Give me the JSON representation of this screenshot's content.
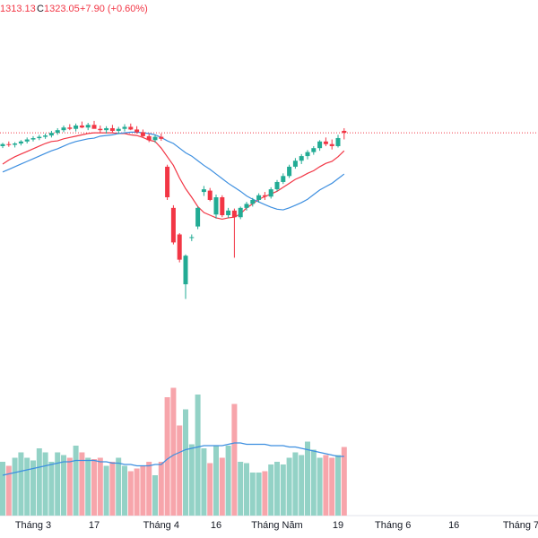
{
  "header": {
    "low": "1313.13",
    "close_prefix": "C",
    "close": "1323.05",
    "change": "+7.90 (+0.60%)"
  },
  "chart_data": {
    "type": "candlestick",
    "categories": [
      null,
      null,
      null,
      null,
      null,
      "Tháng 3",
      null,
      null,
      null,
      null,
      null,
      null,
      null,
      null,
      null,
      "17",
      null,
      null,
      null,
      null,
      null,
      null,
      null,
      null,
      null,
      null,
      "Tháng 4",
      null,
      null,
      null,
      null,
      null,
      null,
      null,
      null,
      "16",
      null,
      null,
      null,
      null,
      null,
      null,
      null,
      null,
      null,
      "Tháng Năm",
      null,
      null,
      null,
      null,
      null,
      null,
      null,
      null,
      null,
      "19",
      null,
      null,
      null,
      null,
      null,
      null,
      null,
      null,
      "Tháng 6",
      null,
      null,
      null,
      null,
      null,
      null,
      null,
      null,
      null,
      "16",
      null,
      null,
      null,
      null,
      null,
      null,
      null,
      null,
      null,
      null,
      "Tháng 7",
      null,
      null
    ],
    "open": [
      1303,
      1306,
      1305,
      1307,
      1310,
      1313,
      1315,
      1317,
      1319,
      1323,
      1327,
      1331,
      1329,
      1334,
      1331,
      1335,
      1329,
      1327,
      1330,
      1326,
      1329,
      1332,
      1328,
      1324,
      1318,
      1312,
      1317,
      1272,
      1210,
      1170,
      1095,
      1165,
      1182,
      1234,
      1236,
      1200,
      1226,
      1199,
      1206,
      1196,
      1210,
      1216,
      1222,
      1229,
      1227,
      1238,
      1249,
      1258,
      1272,
      1281,
      1288,
      1294,
      1300,
      1310,
      1306,
      1303,
      1326,
      null,
      null,
      null,
      null,
      null,
      null,
      null,
      null,
      null,
      null,
      null,
      null,
      null,
      null,
      null,
      null,
      null,
      null,
      null,
      null,
      null,
      null,
      null,
      null,
      null,
      null,
      null,
      null,
      null,
      null,
      null
    ],
    "high": [
      1308,
      1310,
      1309,
      1312,
      1316,
      1318,
      1320,
      1322,
      1326,
      1330,
      1334,
      1336,
      1337,
      1340,
      1338,
      1341,
      1334,
      1333,
      1335,
      1332,
      1336,
      1337,
      1333,
      1328,
      1322,
      1320,
      1322,
      1275,
      1214,
      1172,
      1140,
      1170,
      1212,
      1243,
      1240,
      1230,
      1229,
      1210,
      1209,
      1212,
      1219,
      1225,
      1232,
      1234,
      1241,
      1252,
      1262,
      1275,
      1285,
      1291,
      1297,
      1303,
      1312,
      1316,
      1313,
      1320,
      1330,
      null,
      null,
      null,
      null,
      null,
      null,
      null,
      null,
      null,
      null,
      null,
      null,
      null,
      null,
      null,
      null,
      null,
      null,
      null,
      null,
      null,
      null,
      null,
      null,
      null,
      null,
      null,
      null,
      null,
      null,
      null
    ],
    "low": [
      1300,
      1302,
      1301,
      1304,
      1307,
      1310,
      1312,
      1314,
      1316,
      1320,
      1324,
      1327,
      1325,
      1330,
      1327,
      1330,
      1323,
      1322,
      1324,
      1321,
      1325,
      1327,
      1322,
      1316,
      1309,
      1308,
      1311,
      1222,
      1155,
      1128,
      1073,
      1160,
      1178,
      1228,
      1220,
      1194,
      1196,
      1195,
      1135,
      1193,
      1206,
      1212,
      1218,
      1222,
      1224,
      1235,
      1246,
      1255,
      1269,
      1276,
      1283,
      1290,
      1296,
      1303,
      1298,
      1301,
      1313.13,
      null,
      null,
      null,
      null,
      null,
      null,
      null,
      null,
      null,
      null,
      null,
      null,
      null,
      null,
      null,
      null,
      null,
      null,
      null,
      null,
      null,
      null,
      null,
      null,
      null,
      null,
      null,
      null,
      null,
      null,
      null
    ],
    "close": [
      1306,
      1305,
      1307,
      1310,
      1313,
      1315,
      1317,
      1319,
      1323,
      1327,
      1331,
      1329,
      1334,
      1331,
      1335,
      1329,
      1327,
      1330,
      1326,
      1329,
      1332,
      1328,
      1324,
      1318,
      1312,
      1317,
      1314,
      1226,
      1158,
      1132,
      1138,
      1166,
      1210,
      1238,
      1222,
      1226,
      1199,
      1206,
      1196,
      1210,
      1216,
      1222,
      1229,
      1227,
      1238,
      1249,
      1258,
      1272,
      1281,
      1288,
      1294,
      1300,
      1310,
      1306,
      1303,
      1315.15,
      1323.05,
      null,
      null,
      null,
      null,
      null,
      null,
      null,
      null,
      null,
      null,
      null,
      null,
      null,
      null,
      null,
      null,
      null,
      null,
      null,
      null,
      null,
      null,
      null,
      null,
      null,
      null,
      null,
      null,
      null,
      null,
      null
    ],
    "up_color": "#22ab94",
    "down_color": "#f23645",
    "ylim": [
      983,
      1523
    ],
    "lines": [
      {
        "color": "#f23645",
        "values": [
          1276,
          1282,
          1287,
          1291,
          1295,
          1299,
          1303,
          1307,
          1310,
          1311,
          1314,
          1316,
          1318,
          1320,
          1322,
          1323,
          1323,
          1323,
          1323,
          1322,
          1322,
          1320,
          1319,
          1316,
          1312,
          1310,
          1300,
          1287,
          1274,
          1255,
          1239,
          1226,
          1212,
          1203,
          1199,
          1195,
          1193,
          1195,
          1196,
          1201,
          1210,
          1216,
          1223,
          1227,
          1231,
          1235,
          1241,
          1247,
          1253,
          1257,
          1262,
          1266,
          1272,
          1277,
          1280,
          1287,
          1296,
          null,
          null,
          null,
          null,
          null,
          null,
          null,
          null,
          null,
          null,
          null,
          null,
          null,
          null,
          null,
          null,
          null,
          null,
          null,
          null,
          null,
          null,
          null,
          null,
          null,
          null,
          null,
          null,
          null,
          null,
          null
        ]
      },
      {
        "color": "#3d8fe0",
        "values": [
          1264,
          1268,
          1272,
          1276,
          1280,
          1284,
          1288,
          1292,
          1296,
          1299,
          1303,
          1307,
          1310,
          1312,
          1314,
          1315,
          1318,
          1319,
          1320,
          1322,
          1323,
          1324,
          1324,
          1323,
          1322,
          1320,
          1316,
          1311,
          1307,
          1300,
          1293,
          1288,
          1281,
          1274,
          1268,
          1261,
          1254,
          1247,
          1241,
          1235,
          1228,
          1223,
          1219,
          1215,
          1211,
          1208,
          1207,
          1210,
          1214,
          1218,
          1223,
          1230,
          1237,
          1242,
          1247,
          1254,
          1261,
          null,
          null,
          null,
          null,
          null,
          null,
          null,
          null,
          null,
          null,
          null,
          null,
          null,
          null,
          null,
          null,
          null,
          null,
          null,
          null,
          null,
          null,
          null,
          null,
          null,
          null,
          null,
          null,
          null,
          null,
          null
        ]
      }
    ],
    "volume": {
      "ylim": [
        0,
        100
      ],
      "up_color": "#93d2c6",
      "down_color": "#f7a5ab",
      "ma_color": "#3d8fe0",
      "values": [
        40,
        37,
        43,
        47,
        43,
        41,
        50,
        47,
        40,
        47,
        45,
        43,
        52,
        47,
        43,
        42,
        43,
        37,
        40,
        43,
        37,
        33,
        35,
        37,
        40,
        30,
        40,
        88,
        95,
        67,
        79,
        53,
        90,
        50,
        39,
        52,
        43,
        52,
        83,
        40,
        39,
        32,
        32,
        33,
        38,
        40,
        38,
        43,
        47,
        45,
        55,
        49,
        43,
        45,
        43,
        45,
        51,
        null,
        null,
        null,
        null,
        null,
        null,
        null,
        null,
        null,
        null,
        null,
        null,
        null,
        null,
        null,
        null,
        null,
        null,
        null,
        null,
        null,
        null,
        null,
        null,
        null,
        null,
        null,
        null,
        null,
        null,
        null
      ],
      "ma": [
        30,
        31,
        32,
        33,
        34,
        35,
        36,
        37,
        38,
        39,
        40,
        40,
        41,
        41,
        41,
        41,
        40,
        40,
        39,
        39,
        38,
        38,
        37,
        37,
        37,
        38,
        38,
        42,
        45,
        47,
        49,
        50,
        51,
        52,
        52,
        52,
        52,
        53,
        54,
        54,
        53,
        53,
        53,
        53,
        52,
        52,
        52,
        51,
        51,
        50,
        49,
        48,
        47,
        46,
        45,
        44,
        44,
        null,
        null,
        null,
        null,
        null,
        null,
        null,
        null,
        null,
        null,
        null,
        null,
        null,
        null,
        null,
        null,
        null,
        null,
        null,
        null,
        null,
        null,
        null,
        null,
        null,
        null,
        null,
        null,
        null,
        null,
        null
      ]
    }
  }
}
